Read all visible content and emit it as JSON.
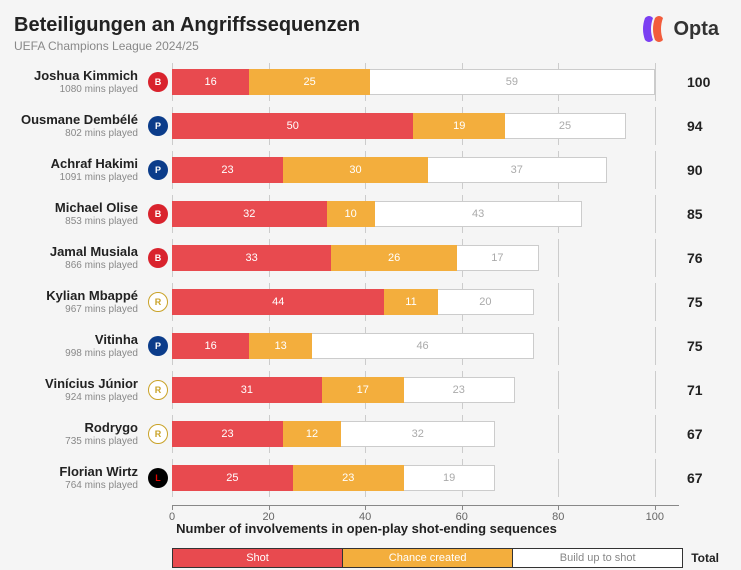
{
  "header": {
    "title": "Beteiligungen an Angriffssequenzen",
    "subtitle": "UEFA Champions League 2024/25",
    "logo_text": "Opta"
  },
  "chart": {
    "type": "stacked-bar-horizontal",
    "x_max": 105,
    "x_ticks": [
      0,
      20,
      40,
      60,
      80,
      100
    ],
    "axis_label": "Number of involvements in open-play shot-ending sequences",
    "colors": {
      "shot": "#e84a4f",
      "chance": "#f3ae3d",
      "build": "#ffffff",
      "build_text": "#aaaaaa",
      "grid": "#cccccc",
      "bg": "#f5f5f5"
    },
    "badges": {
      "bayern": {
        "bg": "#d9232d",
        "fg": "#ffffff",
        "text": "B"
      },
      "psg": {
        "bg": "#0b3c8a",
        "fg": "#ffffff",
        "text": "P"
      },
      "realmadrid": {
        "bg": "#ffffff",
        "fg": "#c9a227",
        "text": "R",
        "border": "#c9a227"
      },
      "leverkusen": {
        "bg": "#000000",
        "fg": "#e10600",
        "text": "L"
      }
    },
    "rows": [
      {
        "name": "Joshua Kimmich",
        "mins": "1080 mins played",
        "club": "bayern",
        "shot": 16,
        "chance": 25,
        "build": 59,
        "total": 100
      },
      {
        "name": "Ousmane Dembélé",
        "mins": "802 mins played",
        "club": "psg",
        "shot": 50,
        "chance": 19,
        "build": 25,
        "total": 94
      },
      {
        "name": "Achraf Hakimi",
        "mins": "1091 mins played",
        "club": "psg",
        "shot": 23,
        "chance": 30,
        "build": 37,
        "total": 90
      },
      {
        "name": "Michael Olise",
        "mins": "853 mins played",
        "club": "bayern",
        "shot": 32,
        "chance": 10,
        "build": 43,
        "total": 85
      },
      {
        "name": "Jamal Musiala",
        "mins": "866 mins played",
        "club": "bayern",
        "shot": 33,
        "chance": 26,
        "build": 17,
        "total": 76
      },
      {
        "name": "Kylian Mbappé",
        "mins": "967 mins played",
        "club": "realmadrid",
        "shot": 44,
        "chance": 11,
        "build": 20,
        "total": 75
      },
      {
        "name": "Vitinha",
        "mins": "998 mins played",
        "club": "psg",
        "shot": 16,
        "chance": 13,
        "build": 46,
        "total": 75
      },
      {
        "name": "Vinícius Júnior",
        "mins": "924 mins played",
        "club": "realmadrid",
        "shot": 31,
        "chance": 17,
        "build": 23,
        "total": 71
      },
      {
        "name": "Rodrygo",
        "mins": "735 mins played",
        "club": "realmadrid",
        "shot": 23,
        "chance": 12,
        "build": 32,
        "total": 67
      },
      {
        "name": "Florian Wirtz",
        "mins": "764 mins played",
        "club": "leverkusen",
        "shot": 25,
        "chance": 23,
        "build": 19,
        "total": 67
      }
    ]
  },
  "legend": {
    "items": [
      {
        "key": "shot",
        "label": "Shot",
        "color": "#e84a4f",
        "text_color": "#ffffff"
      },
      {
        "key": "chance",
        "label": "Chance created",
        "color": "#f3ae3d",
        "text_color": "#ffffff"
      },
      {
        "key": "build",
        "label": "Build up to shot",
        "color": "#ffffff",
        "text_color": "#888888"
      }
    ],
    "total_label": "Total"
  }
}
